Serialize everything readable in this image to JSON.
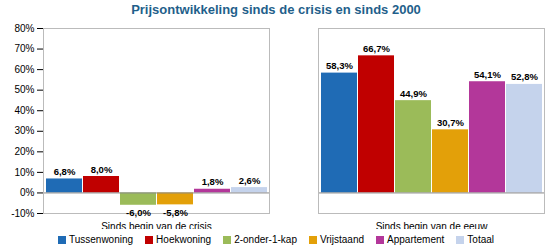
{
  "chart_data": {
    "type": "bar",
    "title": "Prijsontwikkeling sinds de crisis en sinds 2000",
    "categories": [
      "Sinds begin van de crisis",
      "Sinds begin van de eeuw"
    ],
    "series": [
      {
        "name": "Tussenwoning",
        "color": "#1f6bb5",
        "values": [
          6.8,
          58.3
        ],
        "value_labels": [
          "6,8%",
          "58,3%"
        ]
      },
      {
        "name": "Hoekwoning",
        "color": "#c00000",
        "values": [
          8.0,
          66.7
        ],
        "value_labels": [
          "8,0%",
          "66,7%"
        ]
      },
      {
        "name": "2-onder-1-kap",
        "color": "#9bbb59",
        "values": [
          -6.0,
          44.9
        ],
        "value_labels": [
          "-6,0%",
          "44,9%"
        ]
      },
      {
        "name": "Vrijstaand",
        "color": "#e3a009",
        "values": [
          -5.8,
          30.7
        ],
        "value_labels": [
          "-5,8%",
          "30,7%"
        ]
      },
      {
        "name": "Appartement",
        "color": "#b3379a",
        "values": [
          1.8,
          54.1
        ],
        "value_labels": [
          "1,8%",
          "54,1%"
        ]
      },
      {
        "name": "Totaal",
        "color": "#c5d3ec",
        "values": [
          2.6,
          52.8
        ],
        "value_labels": [
          "2,6%",
          "52,8%"
        ]
      }
    ],
    "ylim": [
      -10,
      80
    ],
    "yticks": [
      {
        "value": -10,
        "label": "-10%"
      },
      {
        "value": 0,
        "label": "0%"
      },
      {
        "value": 10,
        "label": "10%"
      },
      {
        "value": 20,
        "label": "20%"
      },
      {
        "value": 30,
        "label": "30%"
      },
      {
        "value": 40,
        "label": "40%"
      },
      {
        "value": 50,
        "label": "50%"
      },
      {
        "value": 60,
        "label": "60%"
      },
      {
        "value": 70,
        "label": "70%"
      },
      {
        "value": 80,
        "label": "80%"
      }
    ],
    "grid": false,
    "legend": "bottom",
    "data_labels": true
  }
}
